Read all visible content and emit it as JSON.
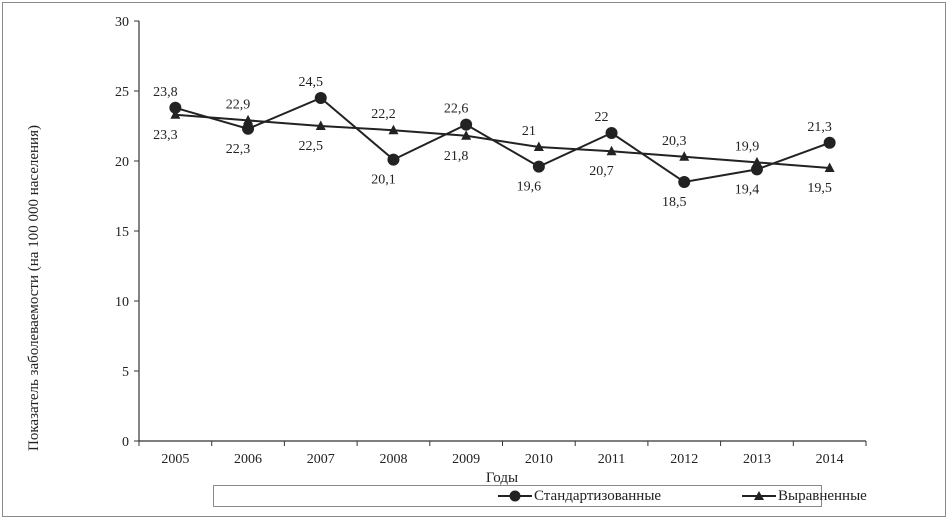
{
  "chart_data": {
    "type": "line",
    "categories": [
      "2005",
      "2006",
      "2007",
      "2008",
      "2009",
      "2010",
      "2011",
      "2012",
      "2013",
      "2014"
    ],
    "series": [
      {
        "name": "Стандартизованные",
        "marker": "circle",
        "values": [
          23.8,
          22.3,
          24.5,
          20.1,
          22.6,
          19.6,
          22.0,
          18.5,
          19.4,
          21.3
        ],
        "labels": [
          "23,8",
          "22,3",
          "24,5",
          "20,1",
          "22,6",
          "19,6",
          "22",
          "18,5",
          "19,4",
          "21,3"
        ]
      },
      {
        "name": "Выравненные",
        "marker": "triangle",
        "values": [
          23.3,
          22.9,
          22.5,
          22.2,
          21.8,
          21.0,
          20.7,
          20.3,
          19.9,
          19.5
        ],
        "labels": [
          "23,3",
          "22,9",
          "22,5",
          "22,2",
          "21,8",
          "21",
          "20,7",
          "20,3",
          "19,9",
          "19,5"
        ]
      }
    ],
    "title": "",
    "xlabel": "Годы",
    "ylabel": "Показатель заболеваемости (на 100 000 населения)",
    "ylim": [
      0,
      30
    ],
    "yticks": [
      0,
      5,
      10,
      15,
      20,
      25,
      30
    ],
    "grid": false,
    "legend_position": "bottom",
    "colors": {
      "line": "#222222",
      "axis": "#333333",
      "frame": "#8a8a8a"
    }
  }
}
